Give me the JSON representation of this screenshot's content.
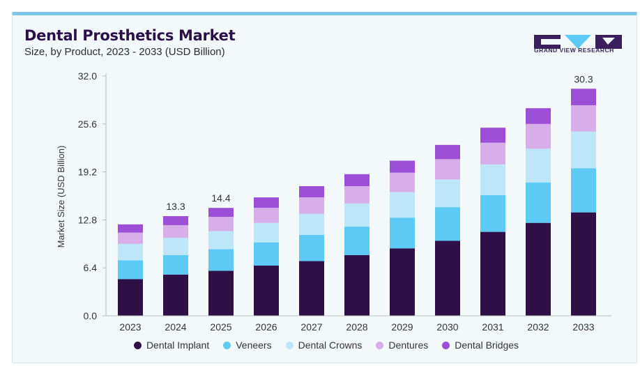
{
  "header": {
    "title": "Dental Prosthetics Market",
    "subtitle": "Size, by Product, 2023 - 2033 (USD Billion)"
  },
  "brand": {
    "name": "GRAND VIEW RESEARCH",
    "logo_icon": "gvr-logo-icon"
  },
  "chart_data": {
    "type": "bar",
    "stacked": true,
    "title": "Dental Prosthetics Market",
    "subtitle": "Size, by Product, 2023 - 2033 (USD Billion)",
    "xlabel": "",
    "ylabel": "Market Size (USD Billion)",
    "ylim": [
      0,
      32
    ],
    "yticks": [
      "0.0",
      "6.4",
      "12.8",
      "19.2",
      "25.6",
      "32.0"
    ],
    "ytick_values": [
      0,
      6.4,
      12.8,
      19.2,
      25.6,
      32.0
    ],
    "grid": false,
    "legend_position": "bottom",
    "categories": [
      "2023",
      "2024",
      "2025",
      "2026",
      "2027",
      "2028",
      "2029",
      "2030",
      "2031",
      "2032",
      "2033"
    ],
    "series": [
      {
        "name": "Dental Implant",
        "color": "#2e1047",
        "values": [
          4.9,
          5.5,
          6.0,
          6.7,
          7.3,
          8.1,
          9.0,
          10.0,
          11.2,
          12.4,
          13.8
        ]
      },
      {
        "name": "Veneers",
        "color": "#5ccaf5",
        "values": [
          2.5,
          2.6,
          2.9,
          3.1,
          3.5,
          3.8,
          4.1,
          4.5,
          4.9,
          5.4,
          5.9
        ]
      },
      {
        "name": "Dental Crowns",
        "color": "#bde6f8",
        "values": [
          2.2,
          2.3,
          2.4,
          2.6,
          2.8,
          3.1,
          3.4,
          3.7,
          4.1,
          4.5,
          4.9
        ]
      },
      {
        "name": "Dentures",
        "color": "#d7aeea",
        "values": [
          1.5,
          1.7,
          1.9,
          2.0,
          2.2,
          2.3,
          2.6,
          2.7,
          2.9,
          3.3,
          3.5
        ]
      },
      {
        "name": "Dental Bridges",
        "color": "#9c4fd6",
        "values": [
          1.1,
          1.2,
          1.2,
          1.4,
          1.5,
          1.6,
          1.6,
          1.9,
          2.0,
          2.1,
          2.2
        ]
      }
    ],
    "data_labels": [
      {
        "category": "2024",
        "text": "13.3"
      },
      {
        "category": "2025",
        "text": "14.4"
      },
      {
        "category": "2033",
        "text": "30.3"
      }
    ]
  }
}
